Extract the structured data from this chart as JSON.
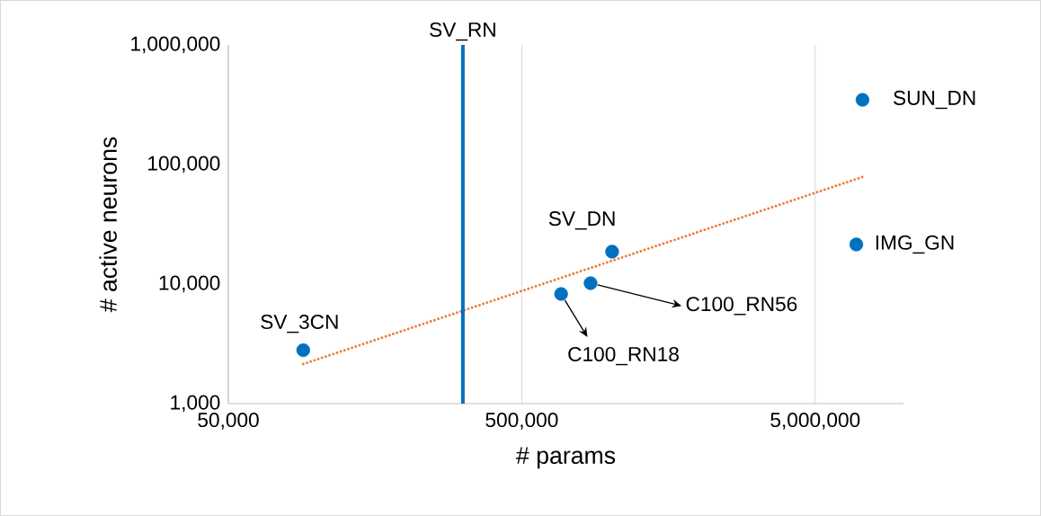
{
  "chart_data": {
    "type": "scatter",
    "xlabel": "# params",
    "ylabel": "# active neurons",
    "log": "xy",
    "xlim": [
      50000,
      10000000
    ],
    "ylim": [
      1000,
      1000000
    ],
    "xticks": [
      {
        "value": 50000,
        "label": "50,000"
      },
      {
        "value": 500000,
        "label": "500,000"
      },
      {
        "value": 5000000,
        "label": "5,000,000"
      }
    ],
    "yticks": [
      {
        "value": 1000,
        "label": "1,000"
      },
      {
        "value": 10000,
        "label": "10,000"
      },
      {
        "value": 100000,
        "label": "100,000"
      },
      {
        "value": 1000000,
        "label": "1,000,000"
      }
    ],
    "grid": "x",
    "series": [
      {
        "color": "#0070c0",
        "marker": "circle",
        "x": [
          90000,
          681000,
          858000,
          1016000,
          6905000,
          7250000
        ],
        "values": [
          2800,
          8260,
          10170,
          18660,
          21430,
          347500
        ]
      },
      {
        "type": "line",
        "color": "#ed7d31",
        "line_style": "dotted",
        "marker": "none",
        "x": [
          90000,
          7250000
        ],
        "values": [
          2140,
          78500
        ]
      }
    ],
    "ref_lines": [
      {
        "axis": "x",
        "value": 315000,
        "label": "SV_RN",
        "color": "#0070c0"
      }
    ],
    "annotations": [
      {
        "text": "SV_3CN",
        "x": 90000,
        "y": 2800
      },
      {
        "text": "C100_RN18",
        "x": 681000,
        "y": 8260
      },
      {
        "text": "C100_RN56",
        "x": 858000,
        "y": 10170
      },
      {
        "text": "SV_DN",
        "x": 1016000,
        "y": 18660
      },
      {
        "text": "IMG_GN",
        "x": 6905000,
        "y": 21430
      },
      {
        "text": "SUN_DN",
        "x": 7250000,
        "y": 347500
      }
    ]
  }
}
